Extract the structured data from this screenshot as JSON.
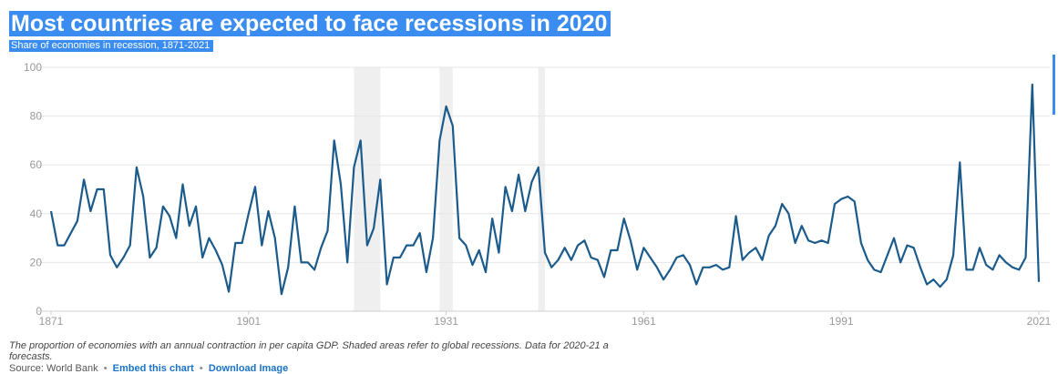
{
  "title": "Most countries are expected to face recessions in 2020",
  "subtitle": "Share of economies in recession, 1871-2021",
  "note_line1": "The proportion of economies with an annual contraction in per capita GDP. Shaded areas refer to global recessions. Data for 2020-21 a",
  "note_line2": "forecasts.",
  "source_label": "Source: World Bank",
  "embed_link": "Embed this chart",
  "download_link": "Download Image",
  "separator": "•",
  "colors": {
    "line": "#1b5b8c",
    "shade": "#efefef",
    "grid": "#e6e6e6",
    "highlight": "#3a8cf0"
  },
  "chart_data": {
    "type": "line",
    "title": "Most countries are expected to face recessions in 2020",
    "subtitle": "Share of economies in recession, 1871-2021",
    "xlabel": "",
    "ylabel": "",
    "xlim": [
      1871,
      2021
    ],
    "ylim": [
      0,
      100
    ],
    "y_ticks": [
      0,
      20,
      40,
      60,
      80,
      100
    ],
    "x_ticks": [
      1871,
      1901,
      1931,
      1961,
      1991,
      2021
    ],
    "grid": true,
    "shaded_periods": [
      [
        1917,
        1921
      ],
      [
        1930,
        1932
      ],
      [
        1945,
        1946
      ]
    ],
    "series": [
      {
        "x": [
          1871,
          1872,
          1873,
          1874,
          1875,
          1876,
          1877,
          1878,
          1879,
          1880,
          1881,
          1882,
          1883,
          1884,
          1885,
          1886,
          1887,
          1888,
          1889,
          1890,
          1891,
          1892,
          1893,
          1894,
          1895,
          1896,
          1897,
          1898,
          1899,
          1900,
          1901,
          1902,
          1903,
          1904,
          1905,
          1906,
          1907,
          1908,
          1909,
          1910,
          1911,
          1912,
          1913,
          1914,
          1915,
          1916,
          1917,
          1918,
          1919,
          1920,
          1921,
          1922,
          1923,
          1924,
          1925,
          1926,
          1927,
          1928,
          1929,
          1930,
          1931,
          1932,
          1933,
          1934,
          1935,
          1936,
          1937,
          1938,
          1939,
          1940,
          1941,
          1942,
          1943,
          1944,
          1945,
          1946,
          1947,
          1948,
          1949,
          1950,
          1951,
          1952,
          1953,
          1954,
          1955,
          1956,
          1957,
          1958,
          1959,
          1960,
          1961,
          1962,
          1963,
          1964,
          1965,
          1966,
          1967,
          1968,
          1969,
          1970,
          1971,
          1972,
          1973,
          1974,
          1975,
          1976,
          1977,
          1978,
          1979,
          1980,
          1981,
          1982,
          1983,
          1984,
          1985,
          1986,
          1987,
          1988,
          1989,
          1990,
          1991,
          1992,
          1993,
          1994,
          1995,
          1996,
          1997,
          1998,
          1999,
          2000,
          2001,
          2002,
          2003,
          2004,
          2005,
          2006,
          2007,
          2008,
          2009,
          2010,
          2011,
          2012,
          2013,
          2014,
          2015,
          2016,
          2017,
          2018,
          2019,
          2020,
          2021
        ],
        "values": [
          41,
          27,
          27,
          32,
          37,
          54,
          41,
          50,
          50,
          23,
          18,
          22,
          27,
          59,
          47,
          22,
          26,
          43,
          39,
          30,
          52,
          35,
          43,
          22,
          30,
          25,
          19,
          8,
          28,
          28,
          40,
          51,
          27,
          41,
          30,
          7,
          18,
          43,
          20,
          20,
          17,
          26,
          33,
          70,
          52,
          20,
          59,
          70,
          27,
          34,
          54,
          11,
          22,
          22,
          27,
          27,
          32,
          16,
          30,
          70,
          84,
          76,
          30,
          27,
          19,
          25,
          16,
          38,
          24,
          51,
          41,
          56,
          41,
          53,
          59,
          24,
          18,
          21,
          26,
          21,
          27,
          29,
          22,
          21,
          14,
          25,
          25,
          38,
          29,
          17,
          26,
          22,
          18,
          13,
          17,
          22,
          23,
          19,
          11,
          18,
          18,
          19,
          17,
          18,
          39,
          21,
          24,
          26,
          21,
          31,
          35,
          44,
          40,
          28,
          35,
          29,
          28,
          29,
          28,
          44,
          46,
          47,
          45,
          28,
          21,
          17,
          16,
          23,
          30,
          20,
          27,
          26,
          18,
          11,
          13,
          10,
          13,
          23,
          61,
          17,
          17,
          26,
          19,
          17,
          23,
          20,
          18,
          17,
          22,
          93,
          12
        ]
      }
    ]
  }
}
